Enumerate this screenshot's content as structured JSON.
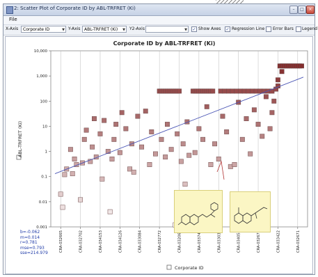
{
  "window": {
    "title": "2: Scatter Plot of Corporate ID by ABL-TRFRET (Ki)",
    "buttons": [
      "minimize",
      "maximize",
      "close"
    ]
  },
  "menu": {
    "items": [
      "File"
    ]
  },
  "toolbar": {
    "x_axis_label": "X-Axis",
    "x_axis_value": "Corporate ID",
    "y_axis_label": "Y-Axis",
    "y_axis_value": "ABL-TRFRET (Ki)",
    "y2_axis_label": "Y2-Axis",
    "y2_axis_value": "",
    "show_axes_label": "Show Axes",
    "show_axes_checked": true,
    "regression_label": "Regression Line",
    "regression_checked": true,
    "error_bars_label": "Error Bars",
    "error_bars_checked": false,
    "legend_label": "Legend",
    "legend_checked": false
  },
  "stats": [
    "b=-0.062",
    "m=0.014",
    "r=0.781",
    "mse=0.793",
    "sse=214.979"
  ],
  "colors": {
    "marker_high": "#7a1b1b",
    "marker_low": "#ffffff",
    "regression": "#4a55b5",
    "stats_text": "#1e3aa8",
    "structure_bg": "#fbf6c4"
  },
  "chart_data": {
    "type": "scatter",
    "title": "Corporate ID by ABL-TRFRET (Ki)",
    "xlabel": "Corporate ID",
    "ylabel": "ABL-TRFRET (Ki)",
    "y_scale": "log",
    "ylim": [
      0.001,
      10000
    ],
    "y_ticks": [
      "0.001",
      "0.01",
      "0.1",
      "1",
      "10",
      "100",
      "1,000",
      "10,000"
    ],
    "x_tick_labels": [
      "CRA-032665",
      "CRA-032702",
      "CRA-034153",
      "CRA-034126",
      "CRA-033084",
      "CRA-032772",
      "CRA-032062",
      "CRA-033740",
      "CRA-033030",
      "CRA-034052",
      "CRA-032676",
      "CRA-033422",
      "CRA-032671"
    ],
    "grid": "vertical",
    "legend": "none",
    "regression_line": {
      "from": 0.13,
      "to": 900
    },
    "points": [
      [
        0.5,
        0.02
      ],
      [
        0.6,
        0.006
      ],
      [
        0.7,
        0.12
      ],
      [
        0.8,
        0.2
      ],
      [
        1.0,
        1.2
      ],
      [
        1.1,
        0.13
      ],
      [
        1.2,
        0.5
      ],
      [
        1.3,
        0.3
      ],
      [
        1.5,
        0.012
      ],
      [
        1.6,
        0.35
      ],
      [
        1.7,
        3
      ],
      [
        1.8,
        7
      ],
      [
        2.0,
        0.4
      ],
      [
        2.1,
        1.5
      ],
      [
        2.2,
        20
      ],
      [
        2.3,
        0.6
      ],
      [
        2.5,
        5
      ],
      [
        2.6,
        0.08
      ],
      [
        2.7,
        17
      ],
      [
        2.9,
        1
      ],
      [
        3.0,
        0.004
      ],
      [
        3.1,
        0.5
      ],
      [
        3.2,
        3
      ],
      [
        3.3,
        12
      ],
      [
        3.5,
        0.9
      ],
      [
        3.6,
        35
      ],
      [
        3.8,
        8
      ],
      [
        4.0,
        0.2
      ],
      [
        4.1,
        2
      ],
      [
        4.2,
        0.15
      ],
      [
        4.4,
        25
      ],
      [
        4.6,
        1.5
      ],
      [
        4.8,
        40
      ],
      [
        5.0,
        0.3
      ],
      [
        5.1,
        6
      ],
      [
        5.3,
        0.8
      ],
      [
        5.5,
        250
      ],
      [
        5.6,
        250
      ],
      [
        5.7,
        250
      ],
      [
        5.8,
        250
      ],
      [
        5.9,
        250
      ],
      [
        6.0,
        250
      ],
      [
        6.1,
        250
      ],
      [
        6.2,
        250
      ],
      [
        6.3,
        250
      ],
      [
        6.4,
        250
      ],
      [
        6.5,
        250
      ],
      [
        5.6,
        3
      ],
      [
        5.8,
        0.6
      ],
      [
        5.9,
        12
      ],
      [
        6.1,
        1.2
      ],
      [
        6.3,
        0.0012
      ],
      [
        6.4,
        5
      ],
      [
        6.6,
        0.4
      ],
      [
        6.7,
        2
      ],
      [
        6.8,
        0.05
      ],
      [
        6.9,
        15
      ],
      [
        7.0,
        0.7
      ],
      [
        7.2,
        250
      ],
      [
        7.3,
        250
      ],
      [
        7.4,
        250
      ],
      [
        7.5,
        250
      ],
      [
        7.6,
        250
      ],
      [
        7.7,
        250
      ],
      [
        7.8,
        250
      ],
      [
        7.9,
        250
      ],
      [
        8.0,
        250
      ],
      [
        8.1,
        250
      ],
      [
        8.2,
        250
      ],
      [
        7.3,
        0.9
      ],
      [
        7.5,
        8
      ],
      [
        7.7,
        3
      ],
      [
        7.9,
        60
      ],
      [
        8.1,
        0.3
      ],
      [
        8.3,
        2
      ],
      [
        8.5,
        0.5
      ],
      [
        8.6,
        250
      ],
      [
        8.8,
        250
      ],
      [
        9.0,
        250
      ],
      [
        9.2,
        250
      ],
      [
        9.4,
        250
      ],
      [
        9.6,
        250
      ],
      [
        9.8,
        250
      ],
      [
        10.0,
        250
      ],
      [
        10.2,
        250
      ],
      [
        10.4,
        250
      ],
      [
        10.6,
        250
      ],
      [
        10.8,
        250
      ],
      [
        11.0,
        250
      ],
      [
        11.2,
        250
      ],
      [
        8.7,
        25
      ],
      [
        8.9,
        6
      ],
      [
        9.1,
        0.25
      ],
      [
        9.3,
        0.3
      ],
      [
        9.5,
        90
      ],
      [
        9.7,
        3
      ],
      [
        9.9,
        20
      ],
      [
        10.1,
        0.8
      ],
      [
        10.3,
        45
      ],
      [
        10.5,
        12
      ],
      [
        10.7,
        4
      ],
      [
        10.9,
        150
      ],
      [
        11.2,
        35
      ],
      [
        11.4,
        300
      ],
      [
        11.5,
        400
      ],
      [
        11.6,
        2500
      ],
      [
        11.7,
        2500
      ],
      [
        11.8,
        2500
      ],
      [
        11.9,
        2500
      ],
      [
        12.0,
        2500
      ],
      [
        12.1,
        2500
      ],
      [
        12.2,
        2500
      ],
      [
        12.3,
        2500
      ],
      [
        12.4,
        2500
      ],
      [
        12.5,
        2500
      ],
      [
        12.6,
        2500
      ],
      [
        12.7,
        2500
      ],
      [
        11.5,
        700
      ],
      [
        11.7,
        1500
      ],
      [
        11.3,
        100
      ],
      [
        11.1,
        8
      ]
    ]
  }
}
